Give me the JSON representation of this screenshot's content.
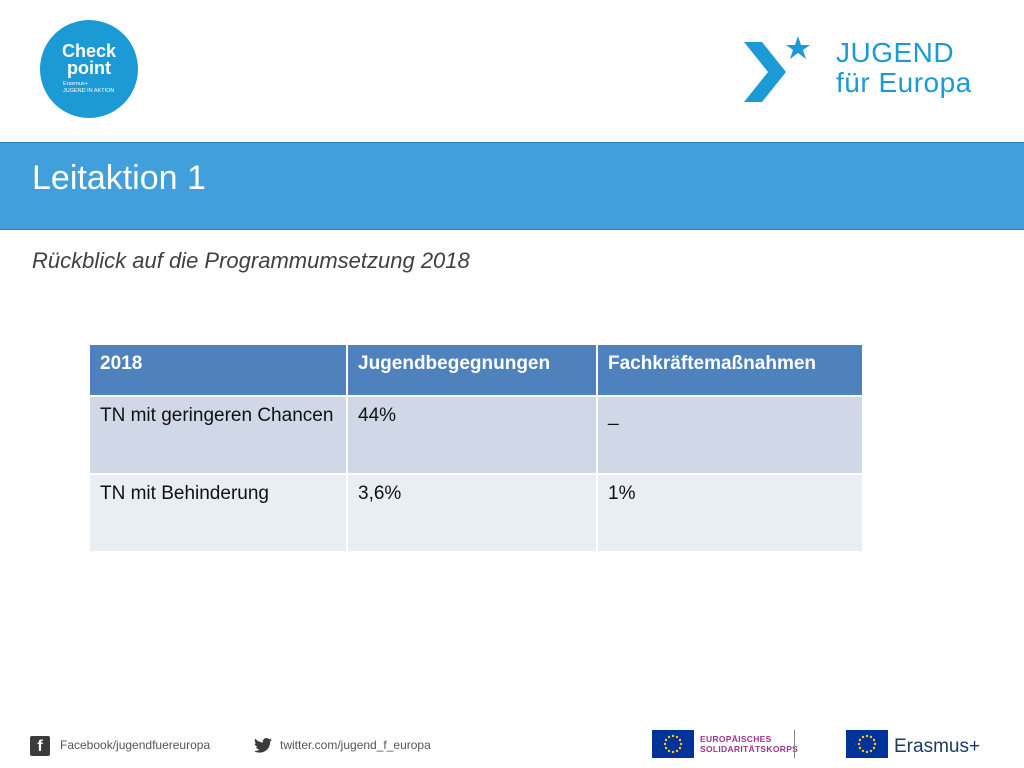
{
  "logos": {
    "checkpoint": {
      "line1": "Check",
      "line2": "point",
      "sub1": "Erasmus+",
      "sub2": "JUGEND IN AKTION"
    },
    "jugend_fuer_europa": {
      "line1": "JUGEND",
      "line2": "für Europa"
    },
    "solidaritaetskorps": {
      "line1": "EUROPÄISCHES",
      "line2": "SOLIDARITÄTSKORPS"
    },
    "erasmus_plus": {
      "label": "Erasmus+"
    },
    "brand_color": "#1b9ad6"
  },
  "slide": {
    "title": "Leitaktion 1",
    "subtitle": "Rückblick auf die Programmumsetzung 2018"
  },
  "table": {
    "headers": [
      "2018",
      "Jugendbegegnungen",
      "Fachkräftemaßnahmen"
    ],
    "rows": [
      [
        "TN mit geringeren Chancen",
        "44%",
        "_"
      ],
      [
        "TN mit Behinderung",
        "3,6%",
        "1%"
      ]
    ]
  },
  "footer": {
    "facebook_icon": "facebook-icon",
    "facebook_text": "Facebook/jugendfuereuropa",
    "twitter_icon": "twitter-icon",
    "twitter_text": "twitter.com/jugend_f_europa"
  }
}
